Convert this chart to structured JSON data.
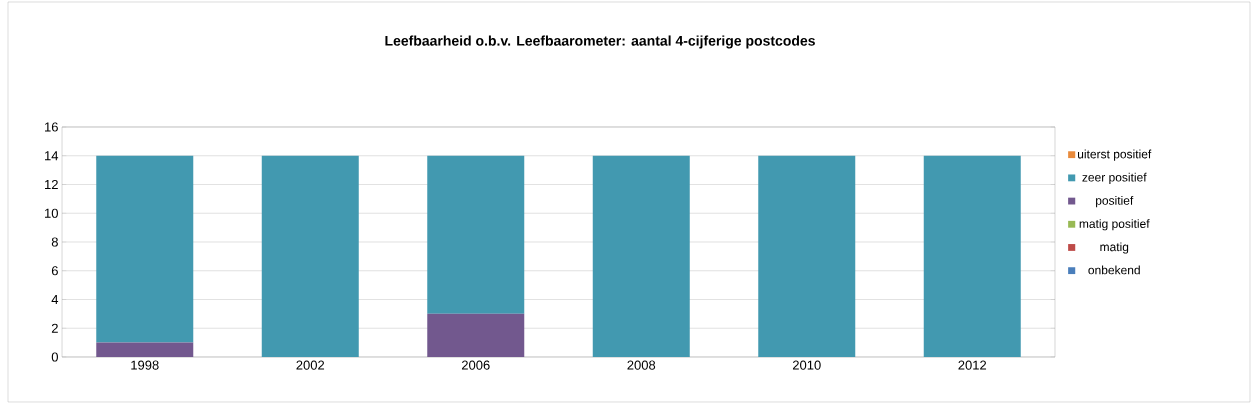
{
  "chart_data": {
    "type": "bar",
    "stacked": true,
    "title": "Leefbaarheid o.b.v. Leefbaarometer: aantal 4-cijferige postcodes",
    "categories": [
      "1998",
      "2002",
      "2006",
      "2008",
      "2010",
      "2012"
    ],
    "series": [
      {
        "name": "onbekend",
        "color": "#4a7ebb",
        "values": [
          0,
          0,
          0,
          0,
          0,
          0
        ]
      },
      {
        "name": "matig",
        "color": "#be4b48",
        "values": [
          0,
          0,
          0,
          0,
          0,
          0
        ]
      },
      {
        "name": "matig positief",
        "color": "#98b954",
        "values": [
          0,
          0,
          0,
          0,
          0,
          0
        ]
      },
      {
        "name": "positief",
        "color": "#72588e",
        "values": [
          1,
          0,
          3,
          0,
          0,
          0
        ]
      },
      {
        "name": "zeer positief",
        "color": "#4299b0",
        "values": [
          13,
          14,
          11,
          14,
          14,
          14
        ]
      },
      {
        "name": "uiterst positief",
        "color": "#e98b3c",
        "values": [
          0,
          0,
          0,
          0,
          0,
          0
        ]
      }
    ],
    "ylim": [
      0,
      16
    ],
    "yticks": [
      0,
      2,
      4,
      6,
      8,
      10,
      12,
      14,
      16
    ],
    "grid": "y",
    "legend": "right"
  }
}
